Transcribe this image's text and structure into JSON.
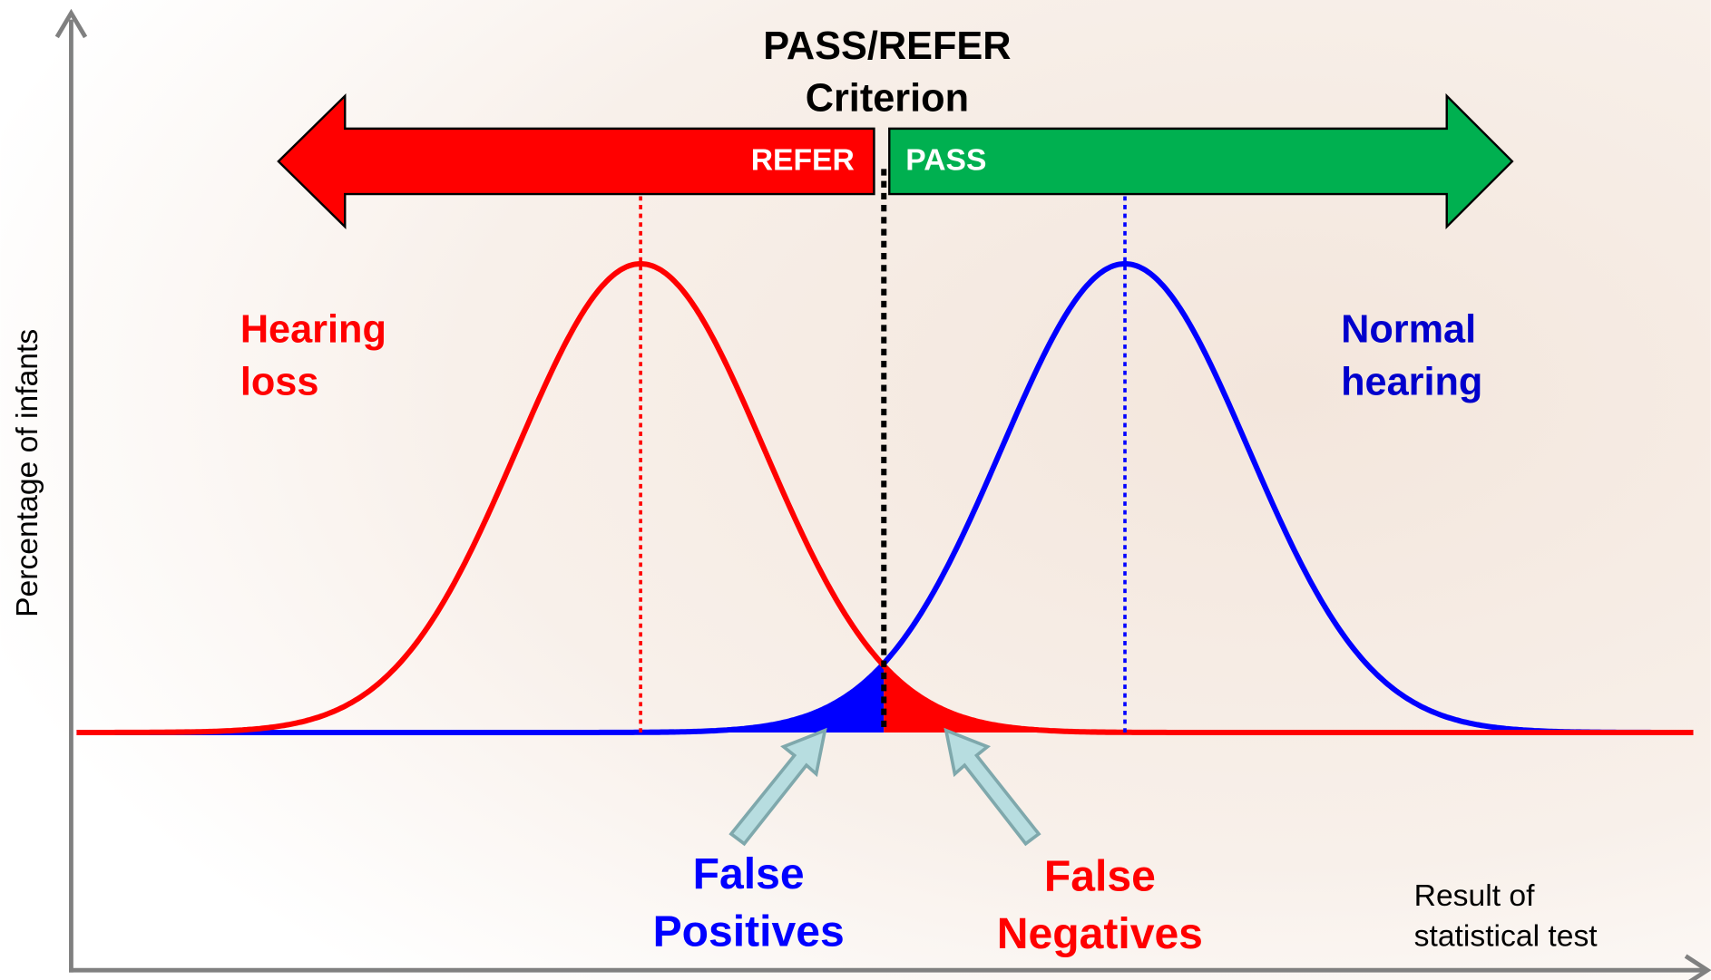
{
  "criterion": {
    "line1": "PASS/REFER",
    "line2": "Criterion"
  },
  "arrows": {
    "refer": "REFER",
    "pass": "PASS"
  },
  "groups": {
    "hearing_loss": {
      "line1": "Hearing",
      "line2": "loss"
    },
    "normal_hearing": {
      "line1": "Normal",
      "line2": "hearing"
    }
  },
  "regions": {
    "false_positives": {
      "line1": "False",
      "line2": "Positives"
    },
    "false_negatives": {
      "line1": "False",
      "line2": "Negatives"
    }
  },
  "axes": {
    "y_label": "Percentage of infants",
    "x_label": {
      "line1": "Result of",
      "line2": "statistical test"
    }
  }
}
